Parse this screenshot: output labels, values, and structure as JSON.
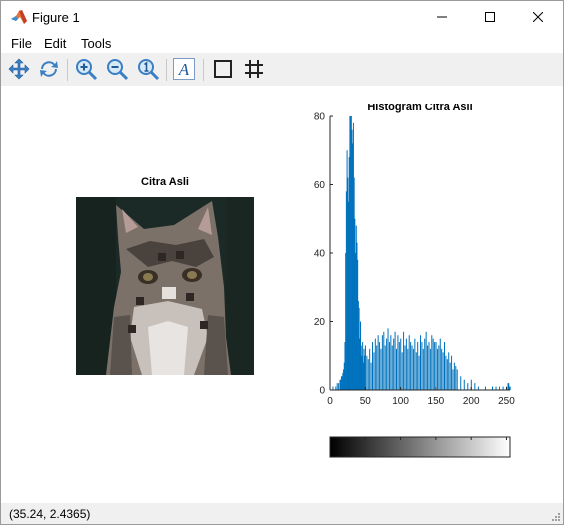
{
  "window": {
    "title": "Figure 1",
    "app_icon": "matlab-logo-icon"
  },
  "menu": {
    "items": [
      "File",
      "Edit",
      "Tools"
    ]
  },
  "toolbar": {
    "tools": [
      {
        "name": "pan-icon"
      },
      {
        "name": "rotate-3d-icon"
      },
      {
        "name": "zoom-in-icon"
      },
      {
        "name": "zoom-out-icon"
      },
      {
        "name": "zoom-reset-icon"
      },
      {
        "name": "insert-text-icon"
      },
      {
        "name": "insert-rectangle-icon"
      },
      {
        "name": "grid-icon"
      }
    ]
  },
  "figure": {
    "image_title": "Citra Asli",
    "histogram_title": "Histogram Citra Asli"
  },
  "status": {
    "coords": "(35.24, 2.4365)"
  },
  "colors": {
    "bar": "#0072bd",
    "window_bg": "#ffffff",
    "toolbar_bg": "#f0f0f0",
    "photo_bg": "#1c2a27"
  },
  "chart_data": {
    "type": "bar",
    "title": "Histogram Citra Asli",
    "xlabel": "",
    "ylabel": "",
    "xlim": [
      0,
      255
    ],
    "ylim": [
      0,
      80
    ],
    "xticks": [
      0,
      50,
      100,
      150,
      200,
      250
    ],
    "yticks": [
      0,
      20,
      40,
      60,
      80
    ],
    "colorbar": {
      "orientation": "horizontal",
      "range": [
        0,
        255
      ],
      "colormap": "gray"
    },
    "x": [
      4,
      8,
      10,
      12,
      14,
      15,
      16,
      17,
      18,
      19,
      20,
      21,
      22,
      23,
      24,
      25,
      26,
      27,
      28,
      29,
      30,
      31,
      32,
      33,
      34,
      35,
      36,
      37,
      38,
      39,
      40,
      41,
      42,
      43,
      44,
      45,
      46,
      47,
      48,
      49,
      50,
      52,
      54,
      56,
      58,
      60,
      62,
      64,
      66,
      68,
      70,
      72,
      74,
      76,
      78,
      80,
      82,
      84,
      86,
      88,
      90,
      92,
      94,
      96,
      98,
      100,
      102,
      104,
      106,
      108,
      110,
      112,
      114,
      116,
      118,
      120,
      122,
      124,
      126,
      128,
      130,
      132,
      134,
      136,
      138,
      140,
      142,
      144,
      146,
      148,
      150,
      152,
      154,
      156,
      158,
      160,
      162,
      164,
      166,
      168,
      170,
      172,
      174,
      176,
      178,
      180,
      185,
      190,
      195,
      200,
      205,
      210,
      220,
      230,
      235,
      240,
      245,
      250,
      252,
      253,
      254,
      255
    ],
    "values": [
      1,
      1,
      2,
      2,
      3,
      3,
      4,
      4,
      5,
      6,
      8,
      14,
      40,
      58,
      70,
      62,
      55,
      68,
      80,
      80,
      80,
      76,
      72,
      78,
      62,
      50,
      40,
      48,
      43,
      38,
      26,
      24,
      15,
      20,
      13,
      10,
      14,
      8,
      12,
      10,
      13,
      10,
      9,
      12,
      8,
      14,
      11,
      15,
      13,
      16,
      14,
      12,
      16,
      17,
      13,
      15,
      18,
      14,
      16,
      13,
      15,
      17,
      12,
      16,
      14,
      15,
      11,
      17,
      13,
      15,
      12,
      16,
      14,
      13,
      12,
      15,
      11,
      14,
      10,
      16,
      14,
      12,
      15,
      17,
      13,
      14,
      12,
      16,
      15,
      14,
      14,
      12,
      13,
      15,
      12,
      11,
      14,
      10,
      9,
      11,
      8,
      10,
      6,
      8,
      7,
      6,
      4,
      3,
      2,
      3,
      2,
      1,
      1,
      1,
      1,
      1,
      1,
      1,
      2,
      2,
      1,
      1
    ]
  }
}
